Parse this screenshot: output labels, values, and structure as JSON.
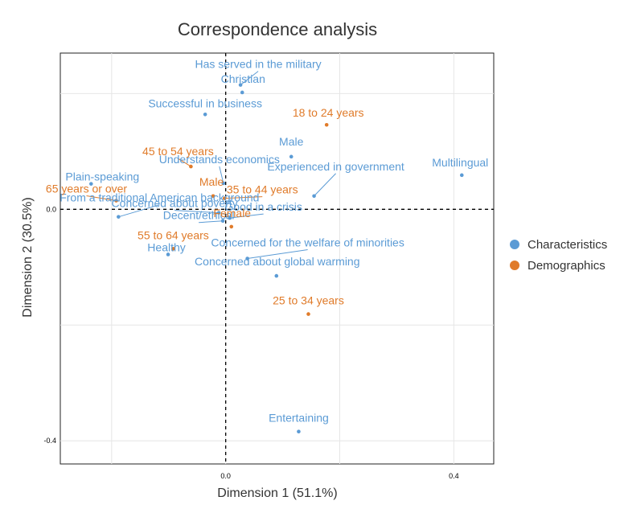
{
  "chart_data": {
    "type": "scatter",
    "title": "Correspondence analysis",
    "xlabel": "Dimension 1 (51.1%)",
    "ylabel": "Dimension 2 (30.5%)",
    "xlim": [
      -0.29,
      0.47
    ],
    "ylim": [
      -0.44,
      0.27
    ],
    "x_ticks": [
      {
        "value": 0.0,
        "label": "0.0"
      },
      {
        "value": 0.4,
        "label": "0.4"
      }
    ],
    "y_ticks": [
      {
        "value": 0.0,
        "label": "0.0"
      },
      {
        "value": -0.4,
        "label": "-0.4"
      }
    ],
    "grid": true,
    "reference_lines": [
      {
        "axis": "x",
        "value": 0,
        "style": "dashed"
      },
      {
        "axis": "y",
        "value": 0,
        "style": "dashed"
      }
    ],
    "legend_position": "right",
    "series": [
      {
        "name": "Characteristics",
        "color": "#5b9bd5",
        "points": [
          {
            "label": "Has served in the military",
            "x": 0.026,
            "y": 0.215
          },
          {
            "label": "Christian",
            "x": 0.029,
            "y": 0.202
          },
          {
            "label": "Successful in business",
            "x": -0.036,
            "y": 0.164
          },
          {
            "label": "Male",
            "x": 0.115,
            "y": 0.091
          },
          {
            "label": "Multilingual",
            "x": 0.414,
            "y": 0.059
          },
          {
            "label": "Understands economics",
            "x": -0.004,
            "y": 0.045
          },
          {
            "label": "Experienced in government",
            "x": 0.155,
            "y": 0.023
          },
          {
            "label": "Plain-speaking",
            "x": -0.236,
            "y": 0.044
          },
          {
            "label": "From a traditional American background",
            "x": -0.188,
            "y": -0.013
          },
          {
            "label": "Concerned about poverty",
            "x": -0.012,
            "y": -0.006
          },
          {
            "label": "Good in a crisis",
            "x": 0.007,
            "y": -0.015
          },
          {
            "label": "Decent/ethical",
            "x": -0.005,
            "y": -0.02
          },
          {
            "label": "Healthy",
            "x": -0.101,
            "y": -0.078
          },
          {
            "label": "Concerned for the welfare of minorities",
            "x": 0.038,
            "y": -0.085
          },
          {
            "label": "Concerned about global warming",
            "x": 0.089,
            "y": -0.115
          },
          {
            "label": "Entertaining",
            "x": 0.128,
            "y": -0.384
          }
        ]
      },
      {
        "name": "Demographics",
        "color": "#e07b2a",
        "points": [
          {
            "label": "18 to 24 years",
            "x": 0.177,
            "y": 0.146
          },
          {
            "label": "45 to 54 years",
            "x": -0.061,
            "y": 0.074
          },
          {
            "label": "Male",
            "x": -0.022,
            "y": 0.023
          },
          {
            "label": "35 to 44 years",
            "x": -0.002,
            "y": 0.019
          },
          {
            "label": "65 years or over",
            "x": -0.192,
            "y": 0.015
          },
          {
            "label": "Female",
            "x": 0.01,
            "y": -0.03
          },
          {
            "label": "55 to 64 years",
            "x": -0.092,
            "y": -0.068
          },
          {
            "label": "25 to 34 years",
            "x": 0.145,
            "y": -0.181
          }
        ]
      }
    ]
  }
}
